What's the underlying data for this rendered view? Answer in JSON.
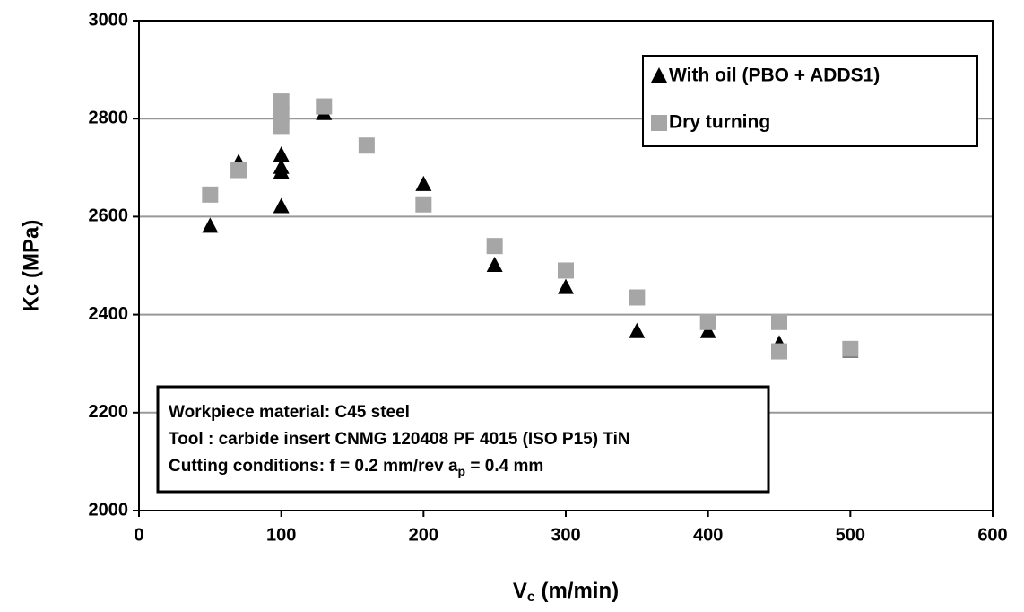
{
  "chart_data": {
    "type": "scatter",
    "x_label": {
      "main": "V",
      "sub": "c",
      "rest": " (m/min)"
    },
    "y_label": "Kc (MPa)",
    "xlim": [
      0,
      600
    ],
    "xticks": [
      0,
      100,
      200,
      300,
      400,
      500,
      600
    ],
    "ylim": [
      2000,
      3000
    ],
    "yticks": [
      2000,
      2200,
      2400,
      2600,
      2800,
      3000
    ],
    "grid": true,
    "legend": "upper right",
    "series": [
      {
        "name": "With oil (PBO + ADDS1)",
        "color": "#000000",
        "marker": "triangle",
        "x": [
          50,
          70,
          100,
          100,
          100,
          100,
          130,
          200,
          250,
          300,
          350,
          400,
          450,
          500
        ],
        "values": [
          2580,
          2710,
          2725,
          2700,
          2690,
          2620,
          2810,
          2665,
          2500,
          2455,
          2365,
          2365,
          2340,
          2325
        ]
      },
      {
        "name": "Dry turning",
        "color": "#a6a6a6",
        "marker": "square",
        "x": [
          50,
          70,
          100,
          100,
          100,
          130,
          160,
          200,
          250,
          300,
          350,
          400,
          450,
          450,
          500
        ],
        "values": [
          2645,
          2695,
          2835,
          2810,
          2785,
          2825,
          2745,
          2625,
          2540,
          2490,
          2435,
          2385,
          2385,
          2325,
          2330
        ]
      }
    ],
    "annotation": {
      "line1": "Workpiece material:  C45 steel",
      "line2": "Tool : carbide insert CNMG  120408 PF 4015 (ISO P15) TiN",
      "line3": {
        "main": "Cutting conditions: f = 0.2 mm/rev  a",
        "sub": "p",
        "rest": " = 0.4 mm"
      }
    }
  }
}
